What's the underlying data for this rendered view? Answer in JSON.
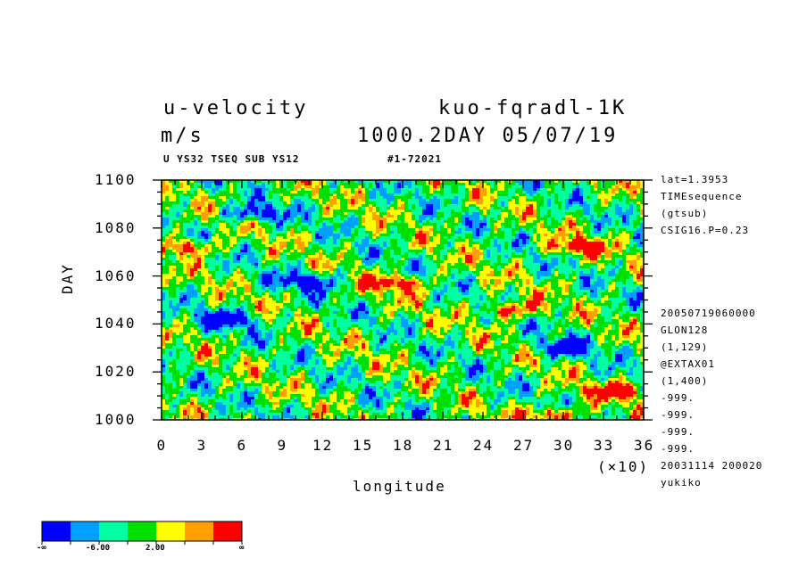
{
  "header": {
    "variable": "u-velocity",
    "experiment": "kuo-fqradl-1K",
    "units": "m/s",
    "time_label": "1000.2DAY 05/07/19",
    "subtitle_left": "U YS32 TSEQ SUB YS12",
    "subtitle_right": "#1-72021"
  },
  "side_info": {
    "top": [
      "lat=1.3953",
      "TIMEsequence",
      "(gtsub)",
      "CSIG16.P=0.23"
    ],
    "bottom": [
      "20050719060000",
      "GLON128",
      "(1,129)",
      "@EXTAX01",
      "(1,400)",
      "-999.",
      "-999.",
      "-999.",
      "-999.",
      "20031114 200020",
      "yukiko"
    ]
  },
  "colors": {
    "levels": [
      "#0000ff",
      "#00a0ff",
      "#00ffa0",
      "#00e000",
      "#ffff00",
      "#ffa000",
      "#ff0000"
    ]
  },
  "colorbar": {
    "labels": [
      "-∞",
      "-6.00",
      "2.00",
      "∞"
    ]
  },
  "chart_data": {
    "type": "heatmap",
    "title": "u-velocity",
    "xlabel": "longitude",
    "ylabel": "DAY",
    "x_multiplier_label": "(×10)",
    "xlim": [
      0,
      36
    ],
    "ylim": [
      1000,
      1100
    ],
    "x_ticks": [
      "0",
      "3",
      "6",
      "9",
      "12",
      "15",
      "18",
      "21",
      "24",
      "27",
      "30",
      "33",
      "36"
    ],
    "y_ticks": [
      "1000",
      "1020",
      "1040",
      "1060",
      "1080",
      "1100"
    ],
    "grid": false,
    "legend_position": "bottom-left",
    "color_levels": 7,
    "features": [
      {
        "x": 17.5,
        "y": 1057,
        "level": 6
      },
      {
        "x": 26,
        "y": 1046,
        "level": 6
      },
      {
        "x": 7,
        "y": 1086,
        "level": 0
      },
      {
        "x": 30,
        "y": 1030,
        "level": 0
      },
      {
        "x": 29,
        "y": 1002,
        "level": 6
      },
      {
        "x": 34,
        "y": 1012,
        "level": 6
      },
      {
        "x": 2,
        "y": 1072,
        "level": 6
      },
      {
        "x": 31,
        "y": 1072,
        "level": 6
      },
      {
        "x": 11,
        "y": 1058,
        "level": 0
      },
      {
        "x": 5,
        "y": 1042,
        "level": 0
      }
    ]
  }
}
